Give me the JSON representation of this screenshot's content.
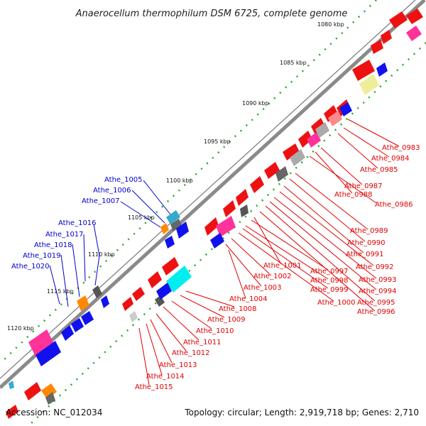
{
  "title": "Anaerocellum thermophilum DSM 6725, complete genome",
  "ticks": [
    "1080 kbp",
    "1085 kbp",
    "1090 kbp",
    "1095 kbp",
    "1100 kbp",
    "1105 kbp",
    "1110 kbp",
    "1115 kbp",
    "1120 kbp"
  ],
  "right_labels": [
    "Athe_0983",
    "Athe_0984",
    "Athe_0985",
    "Athe_0987",
    "Athe_0988",
    "Athe_0986",
    "Athe_0989",
    "Athe_0990",
    "Athe_0991",
    "Athe_0992",
    "Athe_0993",
    "Athe_0994",
    "Athe_0995",
    "Athe_0996",
    "Athe_1001",
    "Athe_0997",
    "Athe_0998",
    "Athe_0999",
    "Athe_1000",
    "Athe_1002",
    "Athe_1003",
    "Athe_1004",
    "Athe_1008",
    "Athe_1009",
    "Athe_1010",
    "Athe_1011",
    "Athe_1012",
    "Athe_1013",
    "Athe_1014",
    "Athe_1015"
  ],
  "left_labels": [
    "Athe_1005",
    "Athe_1006",
    "Athe_1007",
    "Athe_1016",
    "Athe_1017",
    "Athe_1018",
    "Athe_1019",
    "Athe_1020"
  ],
  "footer": {
    "accession": "Accession: NC_012034",
    "summary": "Topology: circular; Length: 2,919,718 bp; Genes: 2,710"
  }
}
